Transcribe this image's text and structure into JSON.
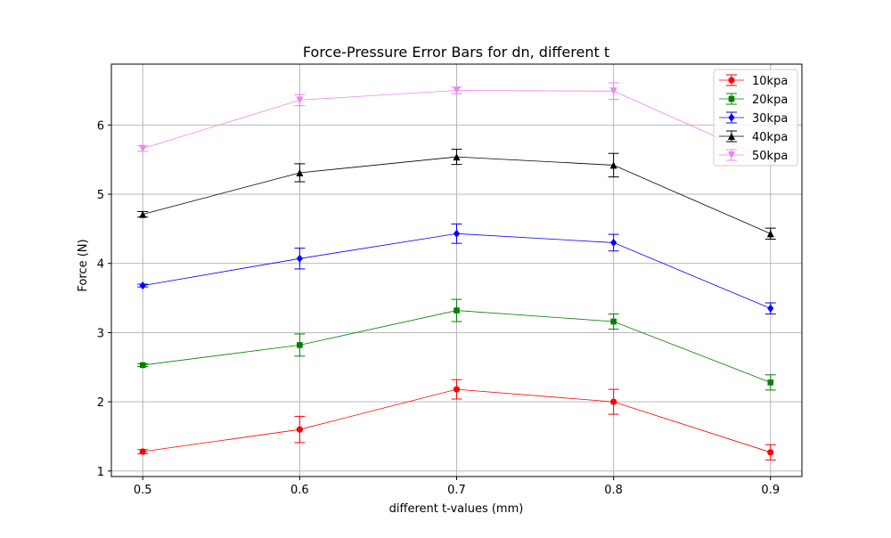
{
  "chart_data": {
    "type": "line",
    "title": "Force-Pressure Error Bars for dn, different t",
    "xlabel": "different t-values (mm)",
    "ylabel": "Force (N)",
    "x": [
      0.5,
      0.6,
      0.7,
      0.8,
      0.9
    ],
    "x_ticks": [
      "0.5",
      "0.6",
      "0.7",
      "0.8",
      "0.9"
    ],
    "y_ticks": [
      "1",
      "2",
      "3",
      "4",
      "5",
      "6"
    ],
    "xlim": [
      0.48,
      0.92
    ],
    "ylim": [
      0.92,
      6.88
    ],
    "grid": true,
    "legend_position": "top-right",
    "series": [
      {
        "name": "10kpa",
        "color": "#ff0000",
        "marker": "circle",
        "values": [
          1.28,
          1.6,
          2.18,
          2.0,
          1.27
        ],
        "errors": [
          0.03,
          0.19,
          0.14,
          0.18,
          0.11
        ]
      },
      {
        "name": "20kpa",
        "color": "#008000",
        "marker": "square",
        "values": [
          2.53,
          2.82,
          3.32,
          3.16,
          2.28
        ],
        "errors": [
          0.02,
          0.16,
          0.16,
          0.11,
          0.11
        ]
      },
      {
        "name": "30kpa",
        "color": "#0000ff",
        "marker": "diamond",
        "values": [
          3.68,
          4.07,
          4.43,
          4.3,
          3.35
        ],
        "errors": [
          0.02,
          0.15,
          0.14,
          0.12,
          0.08
        ]
      },
      {
        "name": "40kpa",
        "color": "#000000",
        "marker": "triangle-up",
        "values": [
          4.71,
          5.31,
          5.54,
          5.42,
          4.43
        ],
        "errors": [
          0.04,
          0.13,
          0.11,
          0.17,
          0.08
        ]
      },
      {
        "name": "50kpa",
        "color": "#ee82ee",
        "marker": "triangle-down",
        "values": [
          5.66,
          6.36,
          6.5,
          6.49,
          5.48
        ],
        "errors": [
          0.04,
          0.08,
          0.05,
          0.12,
          0.05
        ]
      }
    ]
  }
}
